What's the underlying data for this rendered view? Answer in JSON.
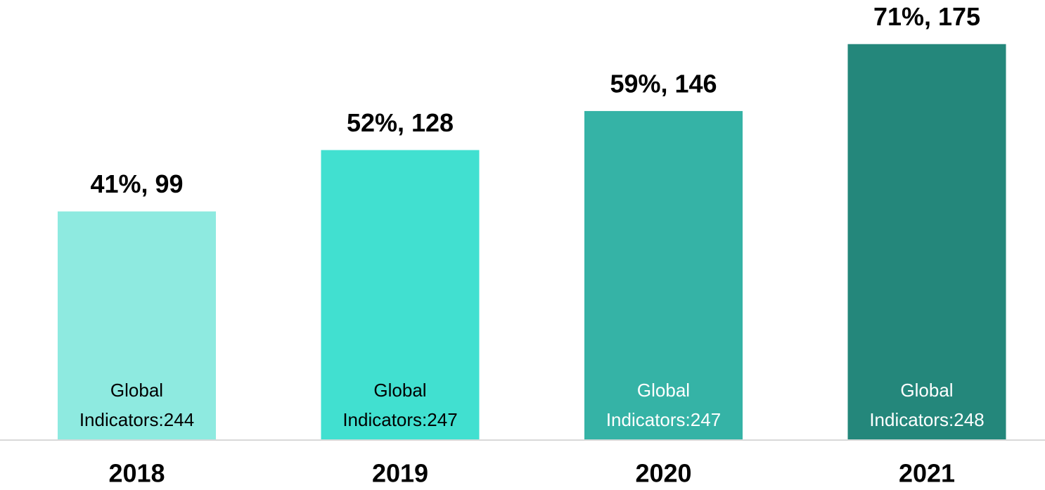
{
  "chart_data": {
    "type": "bar",
    "categories": [
      "2018",
      "2019",
      "2020",
      "2021"
    ],
    "values": [
      41,
      52,
      59,
      71
    ],
    "value_labels": [
      "41%, 99",
      "52%, 128",
      "59%, 146",
      "71%, 175"
    ],
    "inner_labels": [
      [
        "Global",
        "Indicators:244"
      ],
      [
        "Global",
        "Indicators:247"
      ],
      [
        "Global",
        "Indicators:247"
      ],
      [
        "Global",
        "Indicators:248"
      ]
    ],
    "colors": [
      "#8eeae0",
      "#41e0d0",
      "#35b3a6",
      "#24877b"
    ],
    "label_colors": [
      "#000000",
      "#000000",
      "#ffffff",
      "#ffffff"
    ],
    "ylim": [
      0,
      75
    ]
  }
}
